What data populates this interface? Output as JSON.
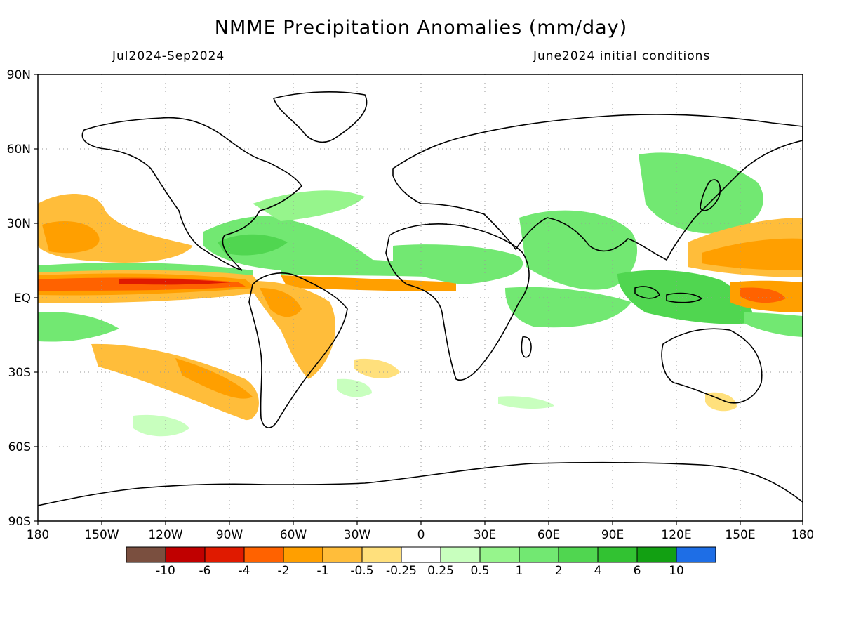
{
  "title": "NMME Precipitation Anomalies (mm/day)",
  "period": "Jul2024-Sep2024",
  "init": "June2024 initial conditions",
  "lat_ticks": [
    "90N",
    "60N",
    "30N",
    "EQ",
    "30S",
    "60S",
    "90S"
  ],
  "lon_ticks": [
    "180",
    "150W",
    "120W",
    "90W",
    "60W",
    "30W",
    "0",
    "30E",
    "60E",
    "90E",
    "120E",
    "150E",
    "180"
  ],
  "colorbar": {
    "colors": [
      "#7a4f3f",
      "#c00000",
      "#e01a00",
      "#ff6200",
      "#ff9f00",
      "#ffbd3a",
      "#ffe07c",
      "#ffffff",
      "#c8ffbe",
      "#96f58c",
      "#72e872",
      "#50d650",
      "#32c232",
      "#12a012",
      "#1e6ee6"
    ],
    "labels": [
      "-10",
      "-6",
      "-4",
      "-2",
      "-1",
      "-0.5",
      "-0.25",
      "0.25",
      "0.5",
      "1",
      "2",
      "4",
      "6",
      "10"
    ]
  }
}
